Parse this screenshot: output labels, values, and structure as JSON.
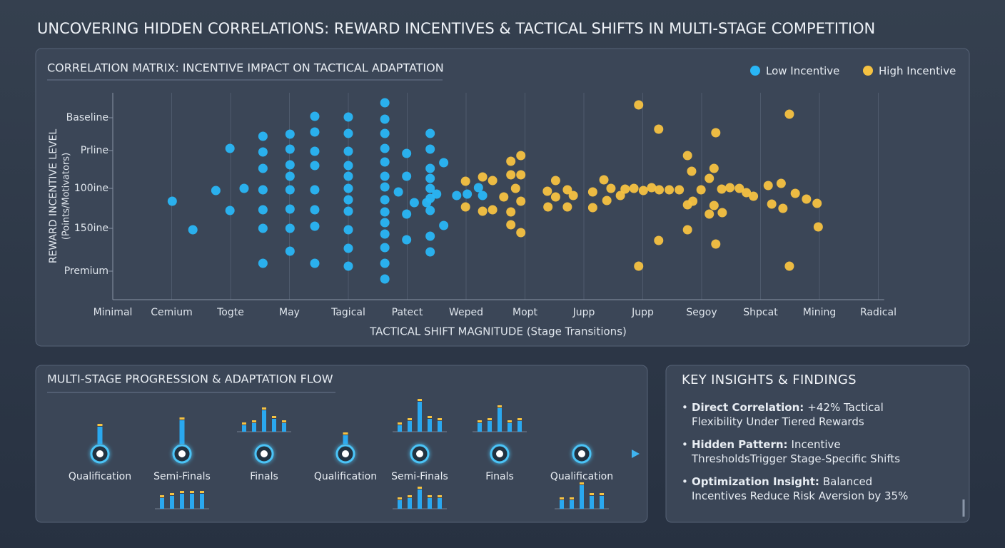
{
  "title": "UNCOVERING HIDDEN CORRELATIONS: REWARD INCENTIVES & TACTICAL SHIFTS IN MULTI-STAGE COMPETITION",
  "chart_data": {
    "type": "scatter",
    "title": "CORRELATION MATRIX: INCENTIVE IMPACT ON TACTICAL ADAPTATION",
    "xlabel": "TACTICAL SHIFT MAGNITUDE (Stage Transitions)",
    "ylabel": [
      "REWARD INCENTIVE LEVEL",
      "(Points/Motivators)"
    ],
    "xlim": [
      0,
      13.1
    ],
    "ylim": [
      0,
      29
    ],
    "xticks": [
      {
        "value": 0,
        "label": "Minimal"
      },
      {
        "value": 1,
        "label": "Cemium"
      },
      {
        "value": 2,
        "label": "Togte"
      },
      {
        "value": 3,
        "label": "May"
      },
      {
        "value": 4,
        "label": "Tagical"
      },
      {
        "value": 5,
        "label": "Patect"
      },
      {
        "value": 6,
        "label": "Weped"
      },
      {
        "value": 7,
        "label": "Mopt"
      },
      {
        "value": 8,
        "label": "Jupp"
      },
      {
        "value": 9,
        "label": "Jupp"
      },
      {
        "value": 10,
        "label": "Segoy"
      },
      {
        "value": 11,
        "label": "Shpcat"
      },
      {
        "value": 12,
        "label": "Mining"
      },
      {
        "value": 13,
        "label": "Radical"
      }
    ],
    "yticks": [
      {
        "value": 25.5,
        "label": "Baseline"
      },
      {
        "value": 20.9,
        "label": "Prline"
      },
      {
        "value": 15.6,
        "label": "100ine"
      },
      {
        "value": 10,
        "label": "150ine"
      },
      {
        "value": 4,
        "label": "Premium"
      }
    ],
    "grid": true,
    "legend": "upper right",
    "series": [
      {
        "name": "Low Incentive",
        "color": "#29b6f6",
        "x": [
          1.01,
          1.36,
          1.75,
          1.99,
          1.99,
          2.23,
          2.55,
          2.55,
          2.55,
          2.55,
          2.55,
          2.55,
          2.55,
          3.01,
          3.01,
          3.01,
          3.01,
          3.01,
          3.01,
          3.01,
          3.01,
          3.43,
          3.43,
          3.43,
          3.43,
          3.43,
          3.43,
          3.43,
          3.43,
          4,
          4,
          4,
          4,
          4,
          4,
          4,
          4,
          4,
          4,
          4,
          4.62,
          4.62,
          4.62,
          4.62,
          4.62,
          4.62,
          4.62,
          4.62,
          4.62,
          4.62,
          4.62,
          4.62,
          4.62,
          4.62,
          4.99,
          4.99,
          4.99,
          4.99,
          4.85,
          5.12,
          5.39,
          5.39,
          5.39,
          5.39,
          5.39,
          5.39,
          5.39,
          5.39,
          5.39,
          5.62,
          5.62,
          5.5,
          5.84,
          6.02,
          6.21,
          6.28,
          5.33
        ],
        "y": [
          13.8,
          9.8,
          15.3,
          21.2,
          12.5,
          15.6,
          22.9,
          20.7,
          18.4,
          15.4,
          12.6,
          10,
          5.1,
          23.2,
          21.1,
          18.9,
          17.3,
          15.4,
          12.7,
          10,
          6.8,
          25.7,
          23.5,
          20.8,
          18.8,
          15.4,
          12.6,
          10.3,
          5.1,
          25.6,
          23.3,
          20.8,
          18.8,
          17.3,
          15.6,
          14,
          12.4,
          9.8,
          7.2,
          4.7,
          27.6,
          25.3,
          23.3,
          21.2,
          19.3,
          17.3,
          15.8,
          14,
          12.3,
          10.8,
          9.2,
          7.3,
          5.1,
          2.9,
          20.5,
          17.3,
          12,
          8.4,
          15.1,
          13.6,
          23.3,
          21.1,
          18.4,
          17,
          15.6,
          14.2,
          12.5,
          8.9,
          6.7,
          19.2,
          10.4,
          14.8,
          14.6,
          14.8,
          15.7,
          14.6,
          13.6
        ]
      },
      {
        "name": "High Incentive",
        "color": "#f5c242",
        "x": [
          5.99,
          5.99,
          6.28,
          6.28,
          6.45,
          6.45,
          6.64,
          6.76,
          6.76,
          6.76,
          6.76,
          6.93,
          6.93,
          6.93,
          6.93,
          6.84,
          7.38,
          7.52,
          7.52,
          7.39,
          7.72,
          7.72,
          7.82,
          8.15,
          8.15,
          8.34,
          8.39,
          8.46,
          8.62,
          8.7,
          8.85,
          8.93,
          8.93,
          9.01,
          9.15,
          9.27,
          9.27,
          9.28,
          9.45,
          9.62,
          9.76,
          9.76,
          9.76,
          9.83,
          9.99,
          10.13,
          10.13,
          10.21,
          10.21,
          10.24,
          10.24,
          10.35,
          10.34,
          10.48,
          10.64,
          10.76,
          10.88,
          11.13,
          11.19,
          11.35,
          11.38,
          11.49,
          11.49,
          11.59,
          11.78,
          11.96,
          11.98,
          9.85
        ],
        "y": [
          16.6,
          13,
          17.2,
          12.4,
          16.7,
          12.6,
          14.4,
          19.4,
          17.5,
          12.3,
          10.5,
          20.2,
          17.5,
          13.8,
          9.4,
          15.6,
          15.2,
          16.7,
          14.4,
          13,
          15.4,
          13,
          14.6,
          15.1,
          12.9,
          16.8,
          13.9,
          15.6,
          14.6,
          15.5,
          15.6,
          27.3,
          4.7,
          15.3,
          15.7,
          23.9,
          8.3,
          15.4,
          15.4,
          15.4,
          20.2,
          13.3,
          9.8,
          18,
          15.4,
          17,
          12,
          18.4,
          13.2,
          23.4,
          7.8,
          12.2,
          15.5,
          15.7,
          15.6,
          15,
          14.5,
          16,
          13.4,
          16.3,
          12.8,
          26,
          4.7,
          14.9,
          14.1,
          13.5,
          10.2,
          13.8
        ]
      }
    ]
  },
  "flow": {
    "title": "MULTI-STAGE PROGRESSION & ADAPTATION FLOW",
    "stages": [
      {
        "label": "Qualification",
        "above": [
          8
        ]
      },
      {
        "label": "Semi-Finals",
        "above": [
          11
        ],
        "below": [
          5,
          6,
          7,
          7,
          7
        ]
      },
      {
        "label": "Finals",
        "above": [
          3,
          4,
          10,
          6,
          4
        ]
      },
      {
        "label": "Qualification",
        "above": [
          4
        ]
      },
      {
        "label": "Semi-Finals",
        "above": [
          3,
          5,
          14,
          6,
          5
        ],
        "below": [
          4,
          5,
          9,
          5,
          5
        ]
      },
      {
        "label": "Finals",
        "above": [
          4,
          5,
          11,
          4,
          5
        ]
      },
      {
        "label": "Qualification",
        "below": [
          4,
          4,
          11,
          6,
          6
        ]
      }
    ]
  },
  "insights": {
    "title": "KEY INSIGHTS & FINDINGS",
    "items": [
      {
        "label": "Direct Correlation:",
        "text": "+42% Tactical Flexibility Under Tiered Rewards"
      },
      {
        "label": "Hidden Pattern:",
        "text": "Incentive ThresholdsTrigger Stage-Specific Shifts"
      },
      {
        "label": "Optimization Insight:",
        "text": "Balanced Incentives Reduce Risk Aversion by 35%"
      }
    ]
  }
}
